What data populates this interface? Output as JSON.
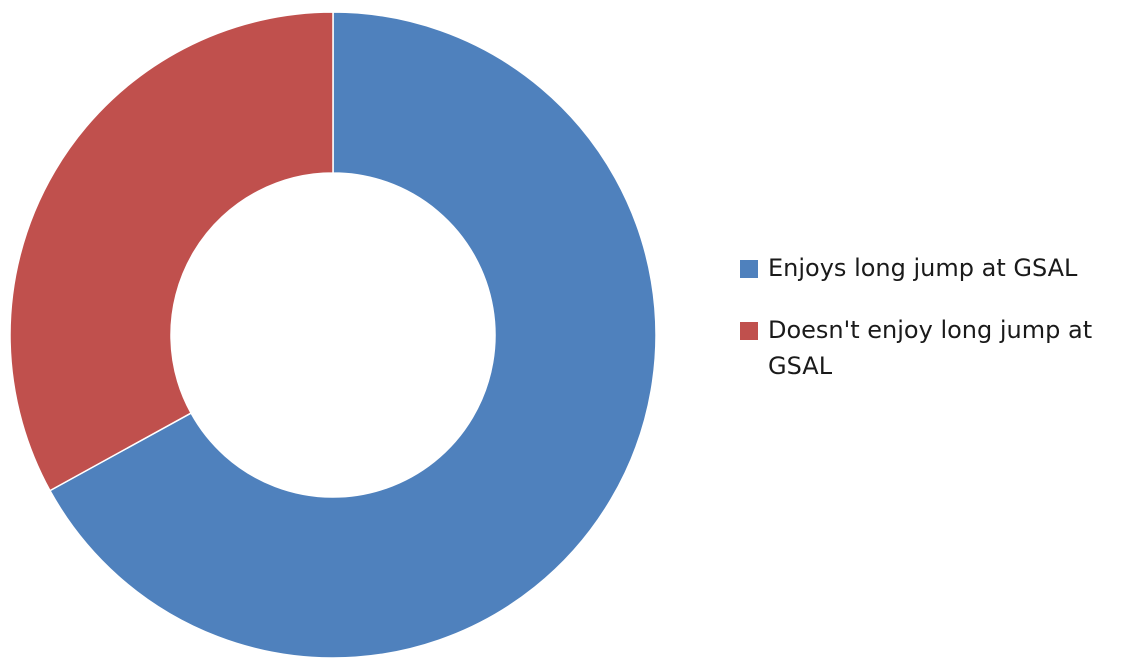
{
  "chart_data": {
    "type": "pie",
    "variant": "donut",
    "title": "",
    "categories": [
      "Enjoys long jump at GSAL",
      "Doesn't enjoy long jump at GSAL"
    ],
    "values": [
      67,
      33
    ],
    "colors": [
      "#4F81BD",
      "#C0504D"
    ],
    "legend": "right",
    "legend_items": [
      {
        "label": "Enjoys long jump at GSAL",
        "color": "#4F81BD"
      },
      {
        "label": "Doesn't enjoy long jump at GSAL",
        "color": "#C0504D"
      }
    ]
  }
}
